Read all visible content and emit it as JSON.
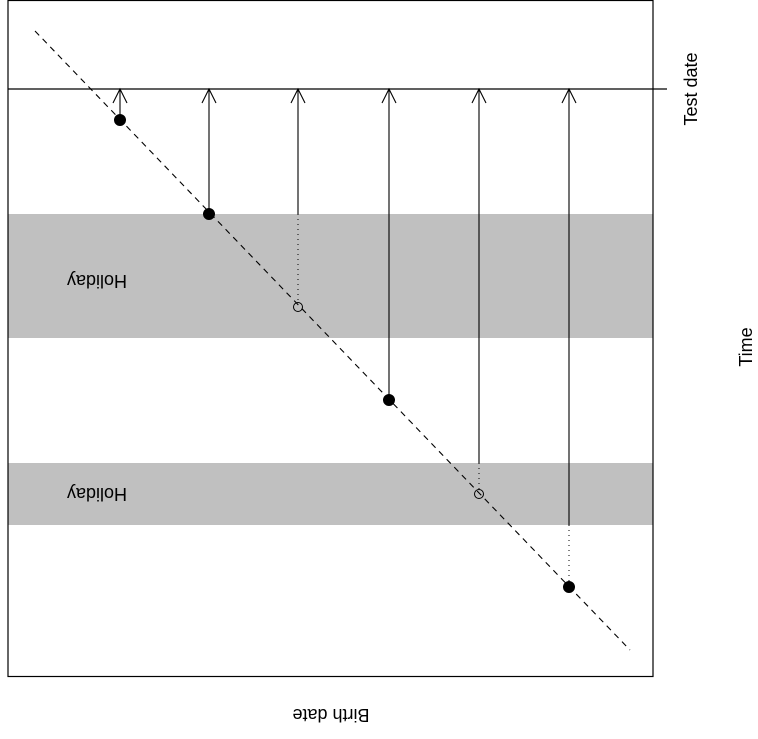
{
  "labels": {
    "test_date": "Test date",
    "time": "Time",
    "birth_date": "Birth date",
    "holiday_1": "Holiday",
    "holiday_2": "Holiday"
  },
  "colors": {
    "holiday_band": "#c0c0c0",
    "line": "#000000",
    "background": "#ffffff"
  },
  "markers": [
    {
      "id": 1,
      "style": "filled"
    },
    {
      "id": 2,
      "style": "filled"
    },
    {
      "id": 3,
      "style": "open"
    },
    {
      "id": 4,
      "style": "filled"
    },
    {
      "id": 5,
      "style": "open"
    },
    {
      "id": 6,
      "style": "filled"
    }
  ]
}
